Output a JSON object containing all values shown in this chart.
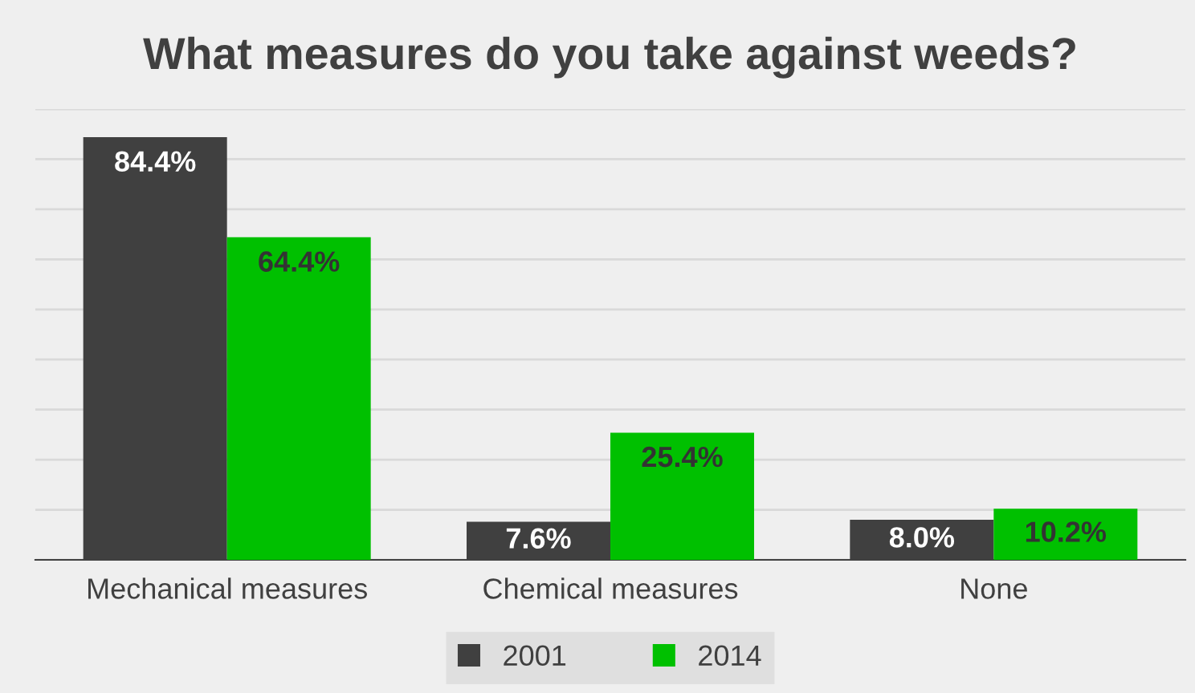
{
  "chart_data": {
    "type": "bar",
    "title": "What measures do you take against weeds?",
    "categories": [
      "Mechanical measures",
      "Chemical measures",
      "None"
    ],
    "series": [
      {
        "name": "2001",
        "color": "#404040",
        "values": [
          84.4,
          7.6,
          8.0
        ],
        "value_labels": [
          "84.4%",
          "7.6%",
          "8.0%"
        ]
      },
      {
        "name": "2014",
        "color": "#00c000",
        "values": [
          64.4,
          25.4,
          10.2
        ],
        "value_labels": [
          "64.4%",
          "25.4%",
          "10.2%"
        ]
      }
    ],
    "ylim": [
      0,
      90
    ],
    "yticks": [
      {
        "value": 0,
        "label": null
      },
      {
        "value": 10,
        "label": null
      },
      {
        "value": 20,
        "label": null
      },
      {
        "value": 30,
        "label": null
      },
      {
        "value": 40,
        "label": null
      },
      {
        "value": 50,
        "label": null
      },
      {
        "value": 60,
        "label": null
      },
      {
        "value": 70,
        "label": null
      },
      {
        "value": 80,
        "label": null
      },
      {
        "value": 90,
        "label": null
      }
    ],
    "grid": "y",
    "legend": "bottom",
    "tick_labels": "x"
  }
}
